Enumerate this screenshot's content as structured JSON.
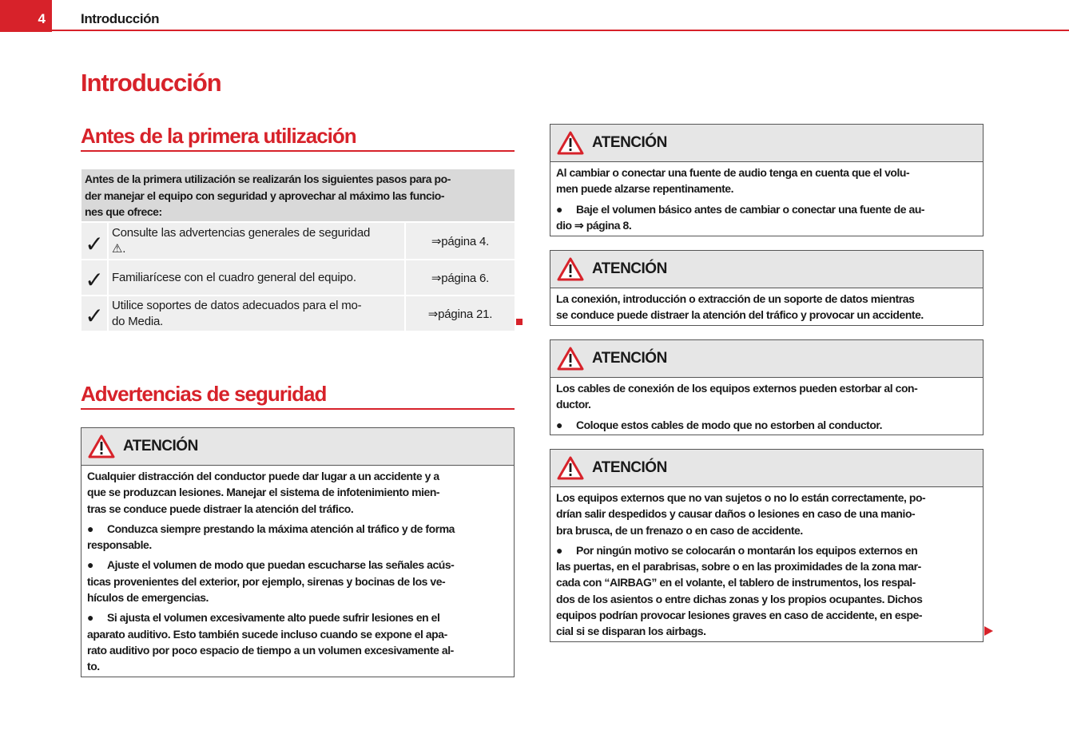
{
  "header": {
    "page_number": "4",
    "running_title": "Introducción"
  },
  "main_title": "Introducción",
  "section_antes": {
    "title": "Antes de la primera utilización",
    "intro": [
      "Antes de la primera utilización se realizarán los siguientes pasos para po-",
      "der manejar el equipo con seguridad y aprovechar al máximo las funcio-",
      "nes que ofrece:"
    ],
    "steps": [
      {
        "check": "✓",
        "text": [
          "Consulte las advertencias generales de seguridad",
          "⚠."
        ],
        "page": "⇒página 4."
      },
      {
        "check": "✓",
        "text": [
          "Familiarícese con el cuadro general del equipo."
        ],
        "page": "⇒página 6."
      },
      {
        "check": "✓",
        "text": [
          "Utilice soportes de datos adecuados para el mo-",
          "do Media."
        ],
        "page": "⇒página 21."
      }
    ]
  },
  "section_advertencias": {
    "title": "Advertencias de seguridad"
  },
  "colors": {
    "accent": "#d7222a",
    "box_header": "#e6e6e6",
    "table_header": "#d9d9d9",
    "table_row": "#efefef"
  },
  "warnings": [
    {
      "title": "ATENCIÓN",
      "icon": "warning-triangle-icon",
      "paragraphs": [
        {
          "bullet": false,
          "lines": [
            "Cualquier distracción del conductor puede dar lugar a un accidente y a",
            "que se produzcan lesiones. Manejar el sistema de infotenimiento mien-",
            "tras se conduce puede distraer la atención del tráfico."
          ]
        },
        {
          "bullet": true,
          "lines": [
            "Conduzca siempre prestando la máxima atención al tráfico y de forma",
            "responsable."
          ]
        },
        {
          "bullet": true,
          "lines": [
            "Ajuste el volumen de modo que puedan escucharse las señales acús-",
            "ticas provenientes del exterior, por ejemplo, sirenas y bocinas de los ve-",
            "hículos de emergencias."
          ]
        },
        {
          "bullet": true,
          "lines": [
            "Si ajusta el volumen excesivamente alto puede sufrir lesiones en el",
            "aparato auditivo. Esto también sucede incluso cuando se expone el apa-",
            "rato auditivo por poco espacio de tiempo a un volumen excesivamente al-",
            "to."
          ]
        }
      ]
    },
    {
      "title": "ATENCIÓN",
      "icon": "warning-triangle-icon",
      "paragraphs": [
        {
          "bullet": false,
          "lines": [
            "Al cambiar o conectar una fuente de audio tenga en cuenta que el volu-",
            "men puede alzarse repentinamente."
          ]
        },
        {
          "bullet": true,
          "lines": [
            "Baje el volumen básico antes de cambiar o conectar una fuente de au-",
            "dio ⇒ página 8."
          ]
        }
      ]
    },
    {
      "title": "ATENCIÓN",
      "icon": "warning-triangle-icon",
      "paragraphs": [
        {
          "bullet": false,
          "lines": [
            "La conexión, introducción o extracción de un soporte de datos mientras",
            "se conduce puede distraer la atención del tráfico y provocar un accidente."
          ]
        }
      ]
    },
    {
      "title": "ATENCIÓN",
      "icon": "warning-triangle-icon",
      "paragraphs": [
        {
          "bullet": false,
          "lines": [
            "Los cables de conexión de los equipos externos pueden estorbar al con-",
            "ductor."
          ]
        },
        {
          "bullet": true,
          "lines": [
            "Coloque estos cables de modo que no estorben al conductor."
          ]
        }
      ]
    },
    {
      "title": "ATENCIÓN",
      "icon": "warning-triangle-icon",
      "paragraphs": [
        {
          "bullet": false,
          "lines": [
            "Los equipos externos que no van sujetos o no lo están correctamente, po-",
            "drían salir despedidos y causar daños o lesiones en caso de una manio-",
            "bra brusca, de un frenazo o en caso de accidente."
          ]
        },
        {
          "bullet": true,
          "lines": [
            "Por ningún motivo se colocarán o montarán los equipos externos en",
            "las puertas, en el parabrisas, sobre o en las proximidades de la zona mar-",
            "cada con “AIRBAG” en el volante, el tablero de instrumentos, los respal-",
            "dos de los asientos o entre dichas zonas y los propios ocupantes. Dichos",
            "equipos podrían provocar lesiones graves en caso de accidente, en espe-",
            "cial si se disparan los airbags."
          ]
        }
      ]
    }
  ],
  "bullet_glyph": "●"
}
